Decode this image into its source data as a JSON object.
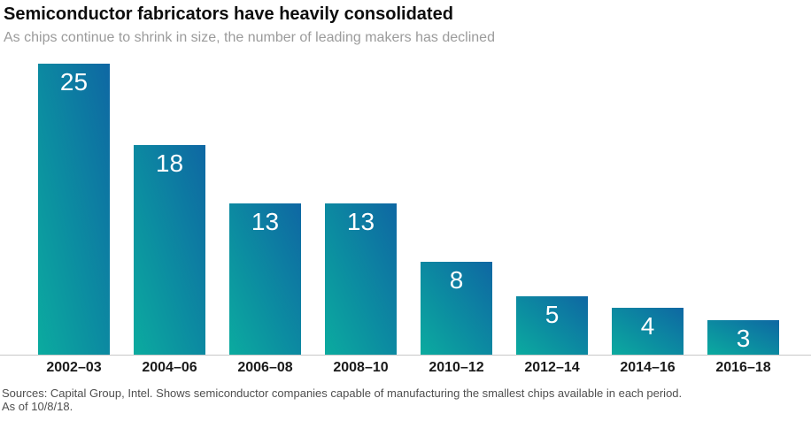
{
  "header": {
    "title": "Semiconductor fabricators have heavily consolidated",
    "subtitle": "As chips continue to shrink in size, the number of leading makers has declined"
  },
  "chart_data": {
    "type": "bar",
    "title": "Semiconductor fabricators have heavily consolidated",
    "subtitle": "As chips continue to shrink in size, the number of leading makers has declined",
    "categories": [
      "2002–03",
      "2004–06",
      "2006–08",
      "2008–10",
      "2010–12",
      "2012–14",
      "2014–16",
      "2016–18"
    ],
    "values": [
      25,
      18,
      13,
      13,
      8,
      5,
      4,
      3
    ],
    "xlabel": "",
    "ylabel": "",
    "ylim": [
      0,
      25
    ],
    "grid": false,
    "legend": false,
    "value_labels": "inside-top, white",
    "bar_gradient": [
      "#0bab9f",
      "#0e67a3"
    ],
    "axis_line_color": "#c9c9c9"
  },
  "footer": {
    "line1": "Sources: Capital Group, Intel. Shows semiconductor companies capable of manufacturing the smallest chips available in each period.",
    "line2": "As of 10/8/18."
  }
}
